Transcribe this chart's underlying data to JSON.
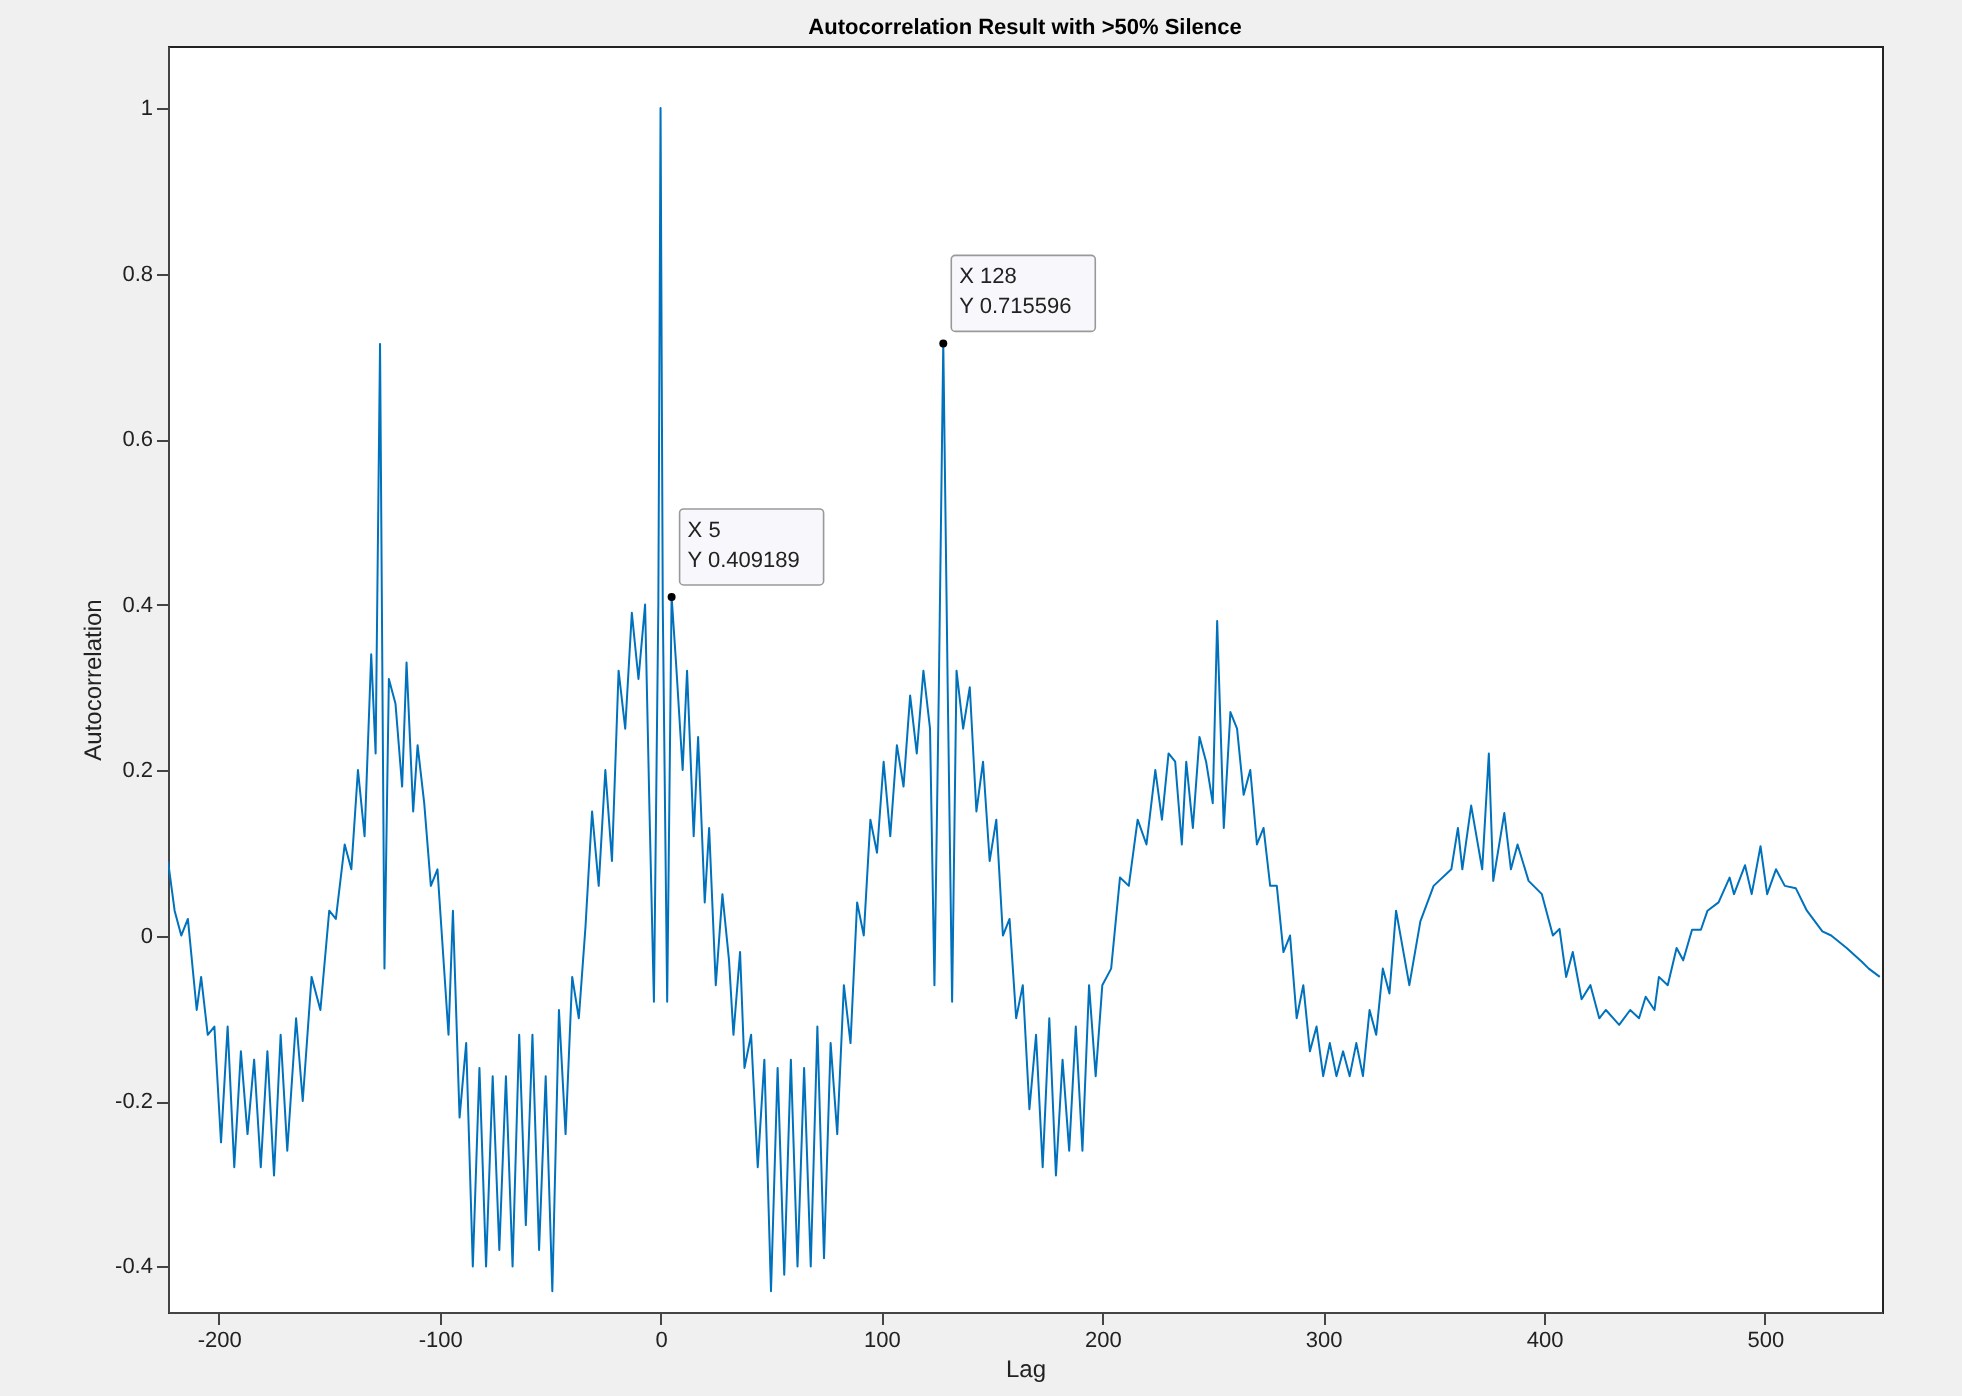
{
  "chart_data": {
    "type": "line",
    "title": "Autocorrelation Result with >50% Silence",
    "xlabel": "Lag",
    "ylabel": "Autocorrelation",
    "xlim": [
      -223,
      553
    ],
    "ylim": [
      -0.455,
      1.075
    ],
    "xticks": [
      -200,
      -100,
      0,
      100,
      200,
      300,
      400,
      500
    ],
    "yticks": [
      -0.4,
      -0.2,
      0,
      0.2,
      0.4,
      0.6,
      0.8,
      1
    ],
    "grid": false,
    "annotations": [
      {
        "text": "X 5\nY 0.409189",
        "x": 5,
        "y": 0.409189
      },
      {
        "text": "X 128\nY 0.715596",
        "x": 128,
        "y": 0.715596
      }
    ],
    "series": [
      {
        "color": "#0072bd",
        "x": [
          -223,
          -220,
          -217,
          -214,
          -210,
          -208,
          -205,
          -202,
          -199,
          -196,
          -193,
          -190,
          -187,
          -184,
          -181,
          -178,
          -175,
          -172,
          -169,
          -165,
          -162,
          -158,
          -154,
          -150,
          -147,
          -143,
          -140,
          -137,
          -134,
          -131,
          -129,
          -127,
          -125,
          -123,
          -120,
          -117,
          -115,
          -112,
          -110,
          -107,
          -104,
          -101,
          -99,
          -96,
          -94,
          -91,
          -88,
          -85,
          -82,
          -79,
          -76,
          -73,
          -70,
          -67,
          -64,
          -61,
          -58,
          -55,
          -52,
          -49,
          -46,
          -43,
          -40,
          -37,
          -34,
          -31,
          -28,
          -25,
          -22,
          -19,
          -16,
          -13,
          -10,
          -7,
          -5,
          -3,
          -1,
          0,
          1,
          3,
          5,
          7,
          10,
          12,
          15,
          17,
          20,
          22,
          25,
          28,
          31,
          33,
          36,
          38,
          41,
          44,
          47,
          50,
          53,
          56,
          59,
          62,
          65,
          68,
          71,
          74,
          77,
          80,
          83,
          86,
          89,
          92,
          95,
          98,
          101,
          104,
          107,
          110,
          113,
          116,
          119,
          122,
          124,
          126,
          128,
          130,
          132,
          134,
          137,
          140,
          143,
          146,
          149,
          152,
          155,
          158,
          161,
          164,
          167,
          170,
          173,
          176,
          179,
          182,
          185,
          188,
          191,
          194,
          197,
          200,
          204,
          208,
          212,
          216,
          220,
          224,
          227,
          230,
          233,
          236,
          238,
          241,
          244,
          247,
          250,
          252,
          255,
          258,
          261,
          264,
          267,
          270,
          273,
          276,
          279,
          282,
          285,
          288,
          291,
          294,
          297,
          300,
          303,
          306,
          309,
          312,
          315,
          318,
          321,
          324,
          327,
          330,
          333,
          336,
          339,
          344,
          350,
          358,
          361,
          363,
          367,
          372,
          375,
          377,
          382,
          385,
          388,
          393,
          399,
          404,
          407,
          410,
          413,
          417,
          421,
          425,
          428,
          434,
          439,
          443,
          446,
          450,
          452,
          456,
          460,
          463,
          467,
          471,
          474,
          479,
          484,
          486,
          491,
          494,
          498,
          501,
          505,
          509,
          514,
          519,
          526,
          530,
          537,
          544,
          547,
          552
        ],
        "values": [
          0.09,
          0.03,
          0.0,
          0.02,
          -0.09,
          -0.05,
          -0.12,
          -0.11,
          -0.25,
          -0.11,
          -0.28,
          -0.14,
          -0.24,
          -0.15,
          -0.28,
          -0.14,
          -0.29,
          -0.12,
          -0.26,
          -0.1,
          -0.2,
          -0.05,
          -0.09,
          0.03,
          0.02,
          0.11,
          0.08,
          0.2,
          0.12,
          0.34,
          0.22,
          0.715,
          -0.04,
          0.31,
          0.28,
          0.18,
          0.33,
          0.15,
          0.23,
          0.16,
          0.06,
          0.08,
          0.0,
          -0.12,
          0.03,
          -0.22,
          -0.13,
          -0.4,
          -0.16,
          -0.4,
          -0.17,
          -0.38,
          -0.17,
          -0.4,
          -0.12,
          -0.35,
          -0.12,
          -0.38,
          -0.17,
          -0.43,
          -0.09,
          -0.24,
          -0.05,
          -0.1,
          0.01,
          0.15,
          0.06,
          0.2,
          0.09,
          0.32,
          0.25,
          0.39,
          0.31,
          0.4,
          0.15,
          -0.08,
          0.4,
          1.0,
          0.4,
          -0.08,
          0.41,
          0.33,
          0.2,
          0.32,
          0.12,
          0.24,
          0.04,
          0.13,
          -0.06,
          0.05,
          -0.03,
          -0.12,
          -0.02,
          -0.16,
          -0.12,
          -0.28,
          -0.15,
          -0.43,
          -0.16,
          -0.41,
          -0.15,
          -0.4,
          -0.16,
          -0.4,
          -0.11,
          -0.39,
          -0.13,
          -0.24,
          -0.06,
          -0.13,
          0.04,
          0.0,
          0.14,
          0.1,
          0.21,
          0.12,
          0.23,
          0.18,
          0.29,
          0.22,
          0.32,
          0.25,
          -0.06,
          0.3,
          0.716,
          0.3,
          -0.08,
          0.32,
          0.25,
          0.3,
          0.15,
          0.21,
          0.09,
          0.14,
          0.0,
          0.02,
          -0.1,
          -0.06,
          -0.21,
          -0.12,
          -0.28,
          -0.1,
          -0.29,
          -0.15,
          -0.26,
          -0.11,
          -0.26,
          -0.06,
          -0.17,
          -0.06,
          -0.04,
          0.07,
          0.06,
          0.14,
          0.11,
          0.2,
          0.14,
          0.22,
          0.21,
          0.11,
          0.21,
          0.13,
          0.24,
          0.21,
          0.16,
          0.38,
          0.13,
          0.27,
          0.25,
          0.17,
          0.2,
          0.11,
          0.13,
          0.06,
          0.06,
          -0.02,
          0.0,
          -0.1,
          -0.06,
          -0.14,
          -0.11,
          -0.17,
          -0.13,
          -0.17,
          -0.14,
          -0.17,
          -0.13,
          -0.17,
          -0.09,
          -0.12,
          -0.04,
          -0.07,
          0.03,
          -0.015,
          -0.06,
          0.017,
          0.06,
          0.08,
          0.13,
          0.08,
          0.157,
          0.08,
          0.22,
          0.066,
          0.148,
          0.08,
          0.11,
          0.066,
          0.05,
          0.0,
          0.008,
          -0.05,
          -0.02,
          -0.077,
          -0.06,
          -0.1,
          -0.09,
          -0.108,
          -0.09,
          -0.1,
          -0.074,
          -0.09,
          -0.05,
          -0.06,
          -0.015,
          -0.03,
          0.007,
          0.007,
          0.03,
          0.04,
          0.07,
          0.05,
          0.085,
          0.05,
          0.108,
          0.05,
          0.08,
          0.06,
          0.057,
          0.03,
          0.005,
          0.0,
          -0.015,
          -0.032,
          -0.04,
          -0.05
        ]
      }
    ]
  }
}
